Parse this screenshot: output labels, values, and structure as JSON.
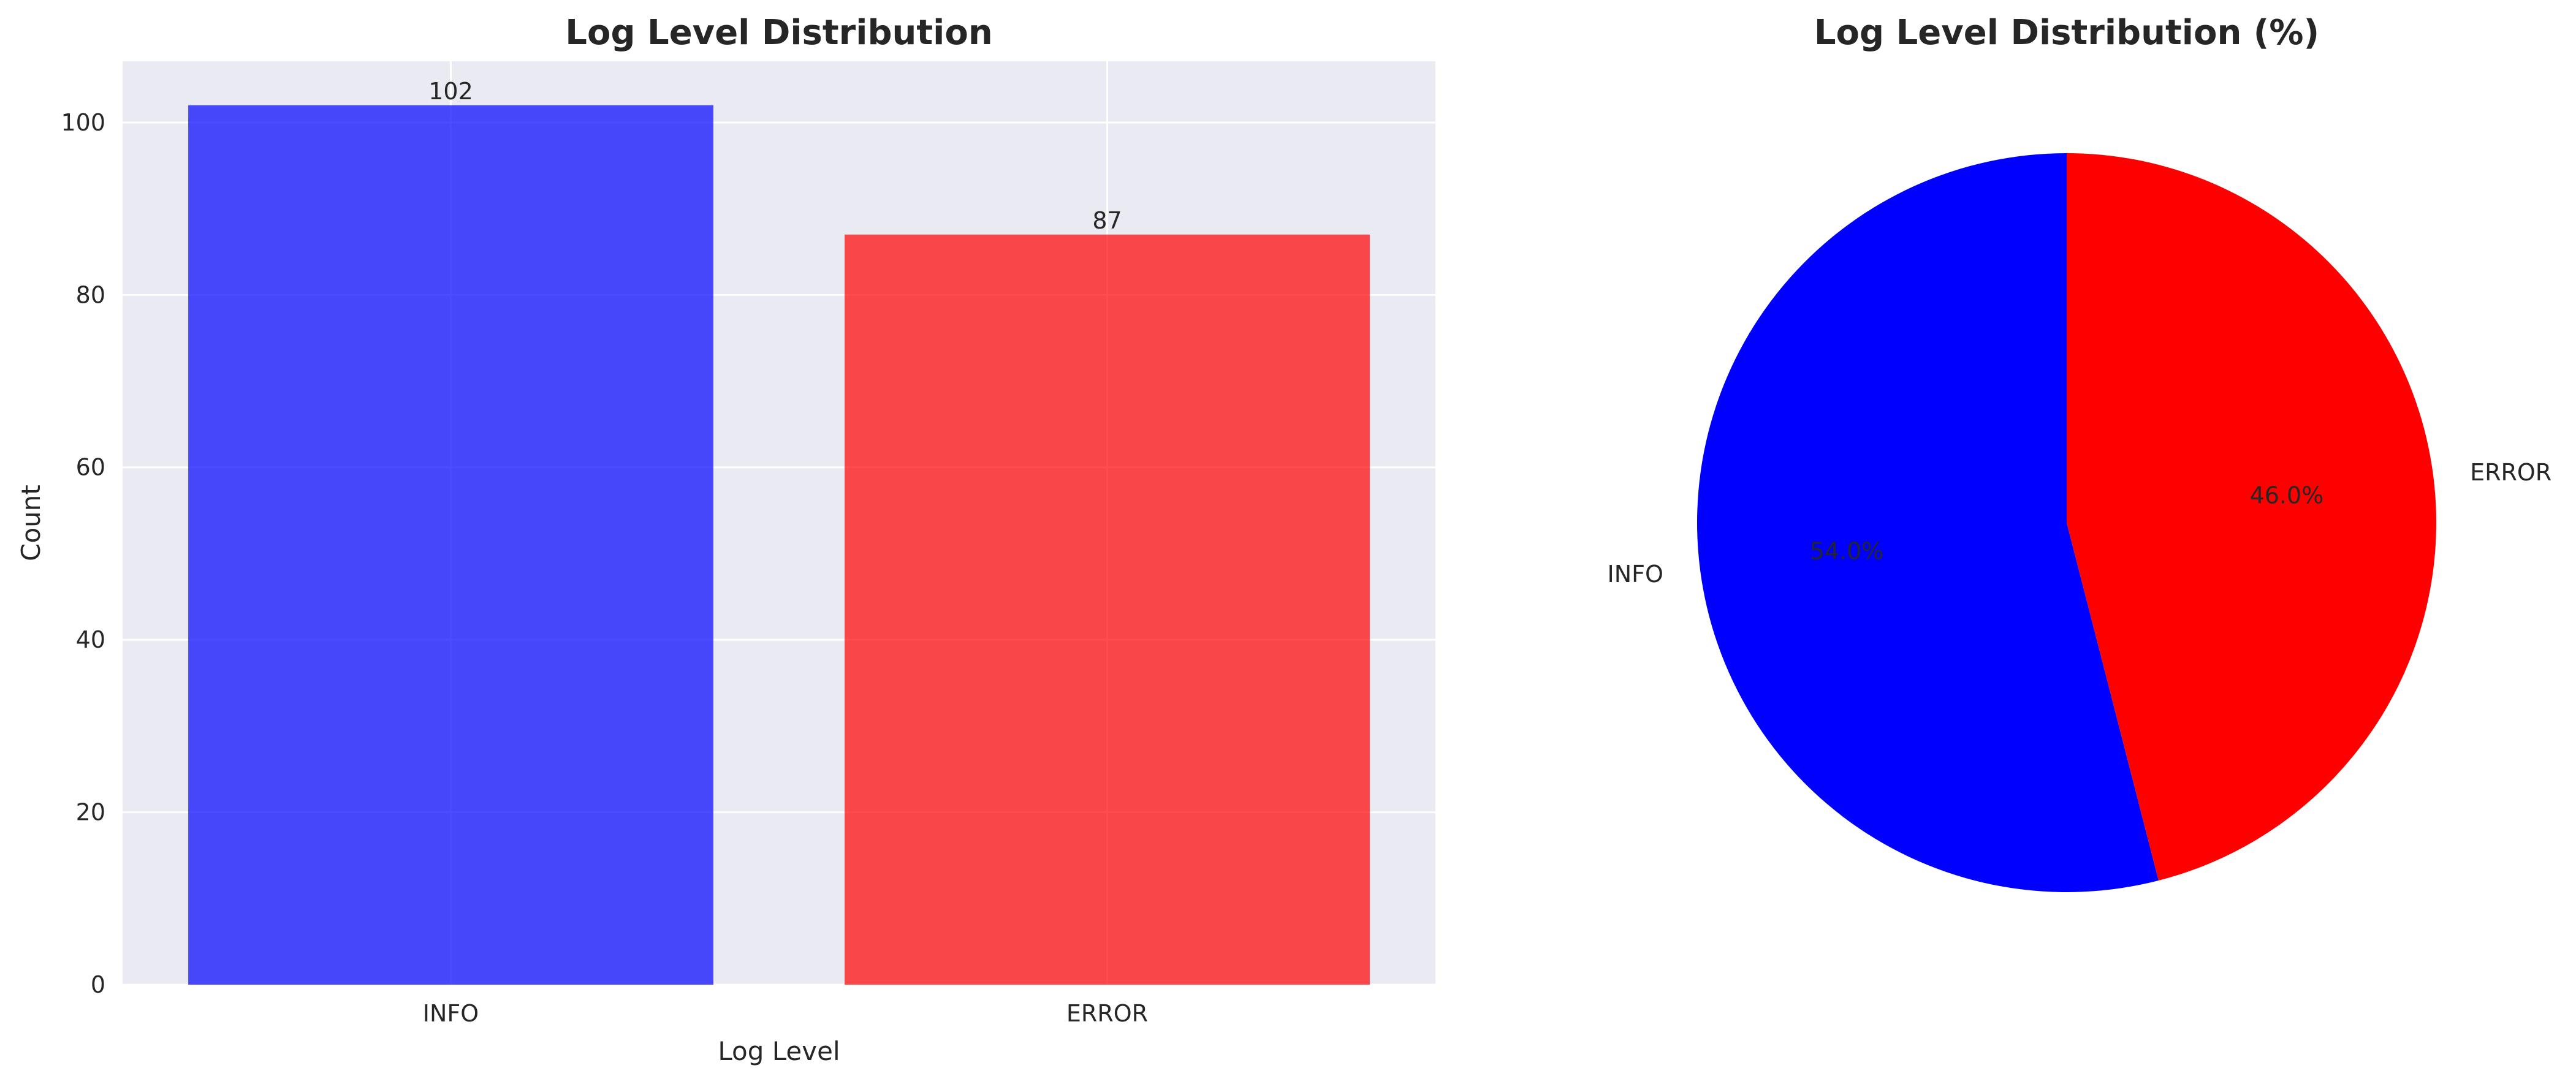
{
  "chart_data": [
    {
      "type": "bar",
      "title": "Log Level Distribution",
      "xlabel": "Log Level",
      "ylabel": "Count",
      "categories": [
        "INFO",
        "ERROR"
      ],
      "values": [
        102,
        87
      ],
      "value_labels": [
        "102",
        "87"
      ],
      "colors": [
        "#0000ff",
        "#ff0000"
      ],
      "ylim": [
        0,
        107.1
      ],
      "yticks": [
        0,
        20,
        40,
        60,
        80,
        100
      ],
      "ytick_labels": [
        "0",
        "20",
        "40",
        "60",
        "80",
        "100"
      ],
      "grid": true,
      "background": "#eaeaf2"
    },
    {
      "type": "pie",
      "title": "Log Level Distribution (%)",
      "labels": [
        "INFO",
        "ERROR"
      ],
      "values": [
        54.0,
        46.0
      ],
      "pct_labels": [
        "54.0%",
        "46.0%"
      ],
      "colors": [
        "#0000ff",
        "#ff0000"
      ]
    }
  ]
}
